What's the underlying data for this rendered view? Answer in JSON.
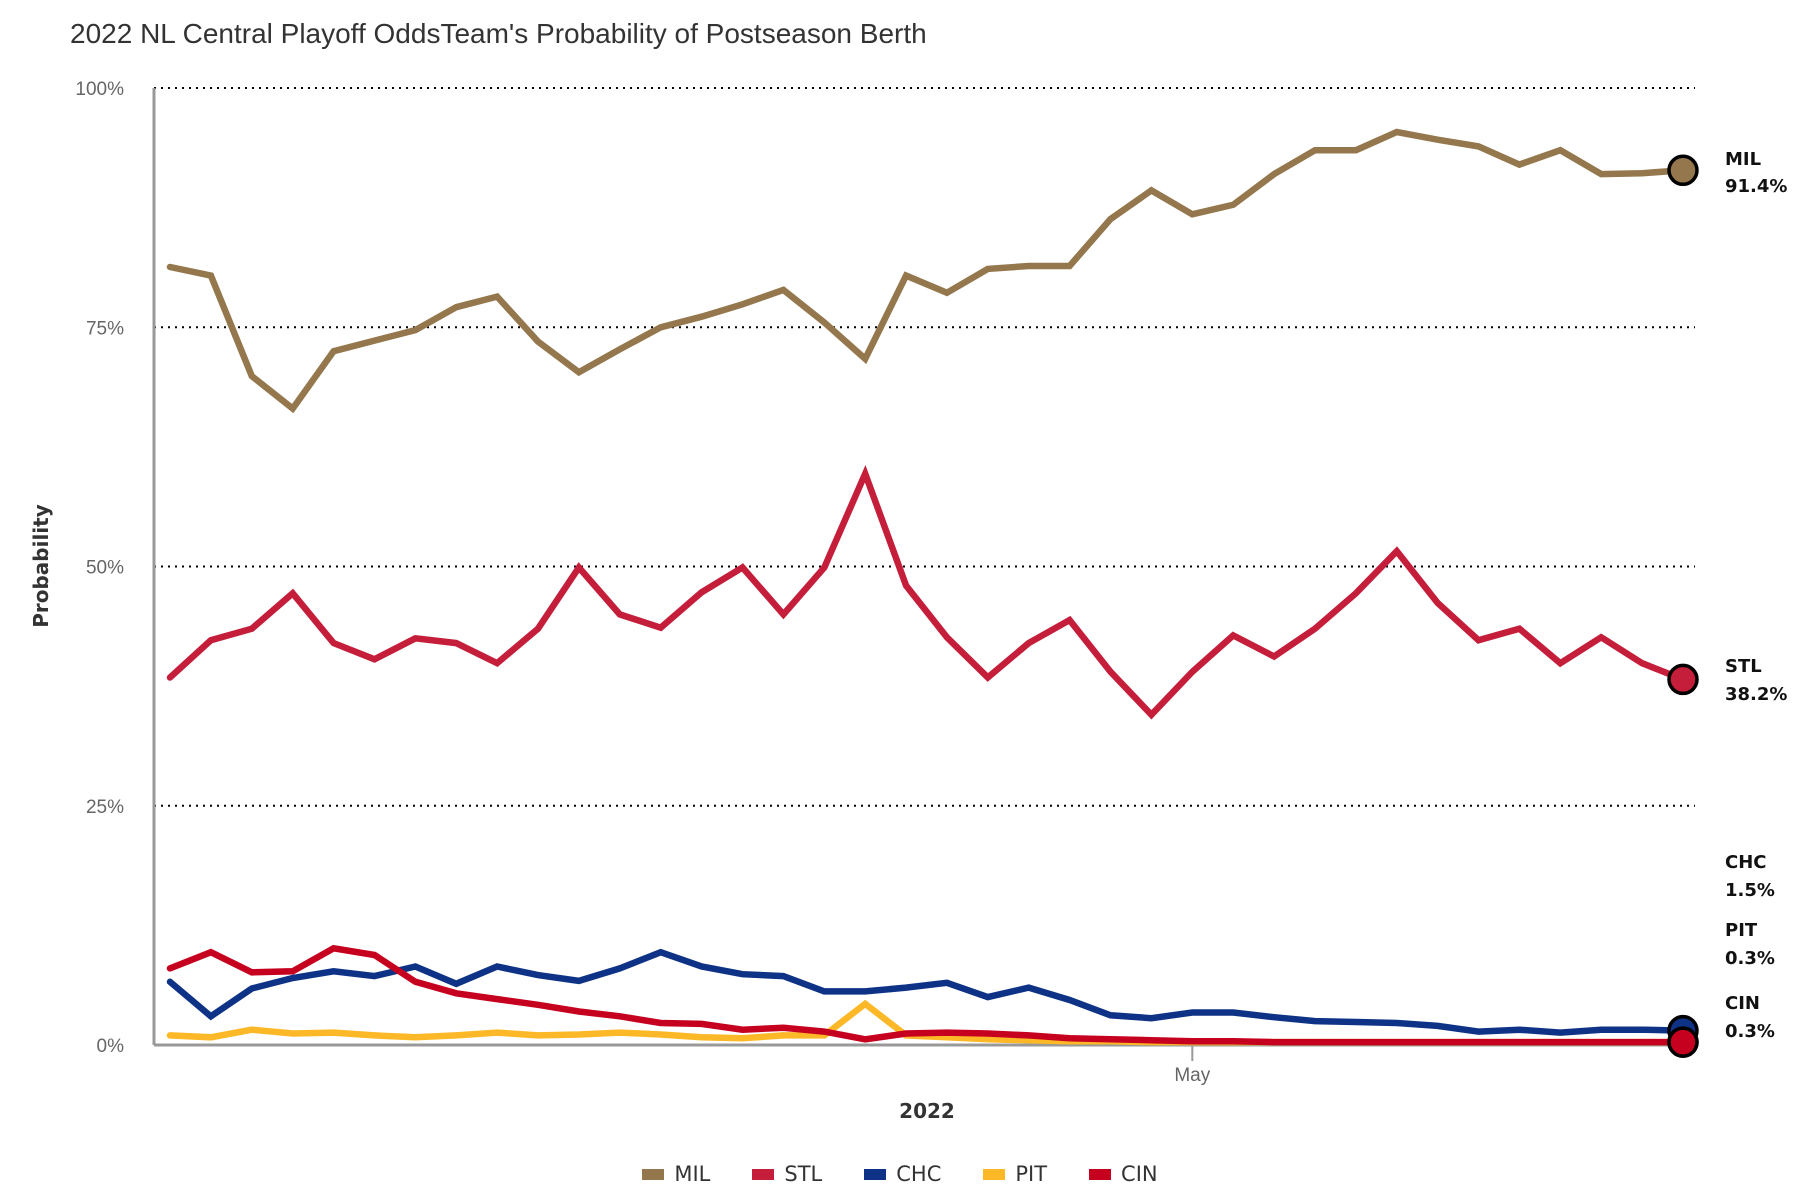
{
  "chart_data": {
    "type": "line",
    "title": "2022 NL Central Playoff OddsTeam's Probability of Postseason Berth",
    "xlabel": "2022",
    "ylabel": "Probability",
    "ylim": [
      0,
      100
    ],
    "yticks": [
      {
        "value": 0,
        "label": "0%"
      },
      {
        "value": 25,
        "label": "25%"
      },
      {
        "value": 50,
        "label": "50%"
      },
      {
        "value": 75,
        "label": "75%"
      },
      {
        "value": 100,
        "label": "100%"
      }
    ],
    "grid": "horizontal dotted",
    "x_points": 38,
    "xticks": [
      {
        "index": 25,
        "label": "May"
      }
    ],
    "legend_position": "bottom-center",
    "series": [
      {
        "name": "MIL",
        "color": "#94774C",
        "end_label": "MIL",
        "end_value": "91.4%",
        "values": [
          81.3,
          80.4,
          69.9,
          66.5,
          72.5,
          73.6,
          74.7,
          77.1,
          78.2,
          73.5,
          70.3,
          72.7,
          75.0,
          76.1,
          77.4,
          78.9,
          75.5,
          71.7,
          80.4,
          78.6,
          81.1,
          81.4,
          81.4,
          86.3,
          89.3,
          86.8,
          87.8,
          91.0,
          93.5,
          93.5,
          95.4,
          94.6,
          93.9,
          92.0,
          93.5,
          91.0,
          91.1,
          91.4
        ]
      },
      {
        "name": "STL",
        "color": "#C41E3A",
        "end_label": "STL",
        "end_value": "38.2%",
        "values": [
          38.4,
          42.3,
          43.5,
          47.2,
          42.0,
          40.3,
          42.5,
          42.0,
          39.9,
          43.5,
          49.9,
          45.0,
          43.6,
          47.3,
          49.9,
          45.0,
          49.9,
          59.7,
          48.0,
          42.6,
          38.4,
          42.0,
          44.4,
          39.0,
          34.5,
          39.0,
          42.8,
          40.6,
          43.5,
          47.2,
          51.6,
          46.2,
          42.3,
          43.5,
          39.9,
          42.6,
          39.9,
          38.2
        ]
      },
      {
        "name": "CHC",
        "color": "#0E3386",
        "end_label": "CHC",
        "end_value": "1.5%",
        "values": [
          6.6,
          3.0,
          5.9,
          7.0,
          7.7,
          7.2,
          8.2,
          6.4,
          8.2,
          7.3,
          6.7,
          8.0,
          9.7,
          8.2,
          7.4,
          7.2,
          5.6,
          5.6,
          6.0,
          6.5,
          5.0,
          6.0,
          4.7,
          3.1,
          2.8,
          3.4,
          3.4,
          2.9,
          2.5,
          2.4,
          2.3,
          2.0,
          1.4,
          1.6,
          1.3,
          1.6,
          1.6,
          1.5
        ]
      },
      {
        "name": "PIT",
        "color": "#FDB827",
        "end_label": "PIT",
        "end_value": "0.3%",
        "values": [
          1.0,
          0.8,
          1.6,
          1.2,
          1.3,
          1.0,
          0.8,
          1.0,
          1.3,
          1.0,
          1.1,
          1.3,
          1.1,
          0.8,
          0.7,
          1.0,
          1.0,
          4.3,
          1.0,
          0.8,
          0.6,
          0.5,
          0.4,
          0.4,
          0.3,
          0.3,
          0.3,
          0.3,
          0.3,
          0.3,
          0.3,
          0.3,
          0.3,
          0.3,
          0.3,
          0.3,
          0.3,
          0.3
        ]
      },
      {
        "name": "CIN",
        "color": "#C6011F",
        "end_label": "CIN",
        "end_value": "0.3%",
        "values": [
          8.0,
          9.7,
          7.6,
          7.7,
          10.1,
          9.4,
          6.6,
          5.4,
          4.8,
          4.2,
          3.5,
          3.0,
          2.3,
          2.2,
          1.6,
          1.8,
          1.4,
          0.6,
          1.2,
          1.3,
          1.2,
          1.0,
          0.7,
          0.6,
          0.5,
          0.4,
          0.4,
          0.3,
          0.3,
          0.3,
          0.3,
          0.3,
          0.3,
          0.3,
          0.3,
          0.3,
          0.3,
          0.3
        ]
      }
    ]
  }
}
